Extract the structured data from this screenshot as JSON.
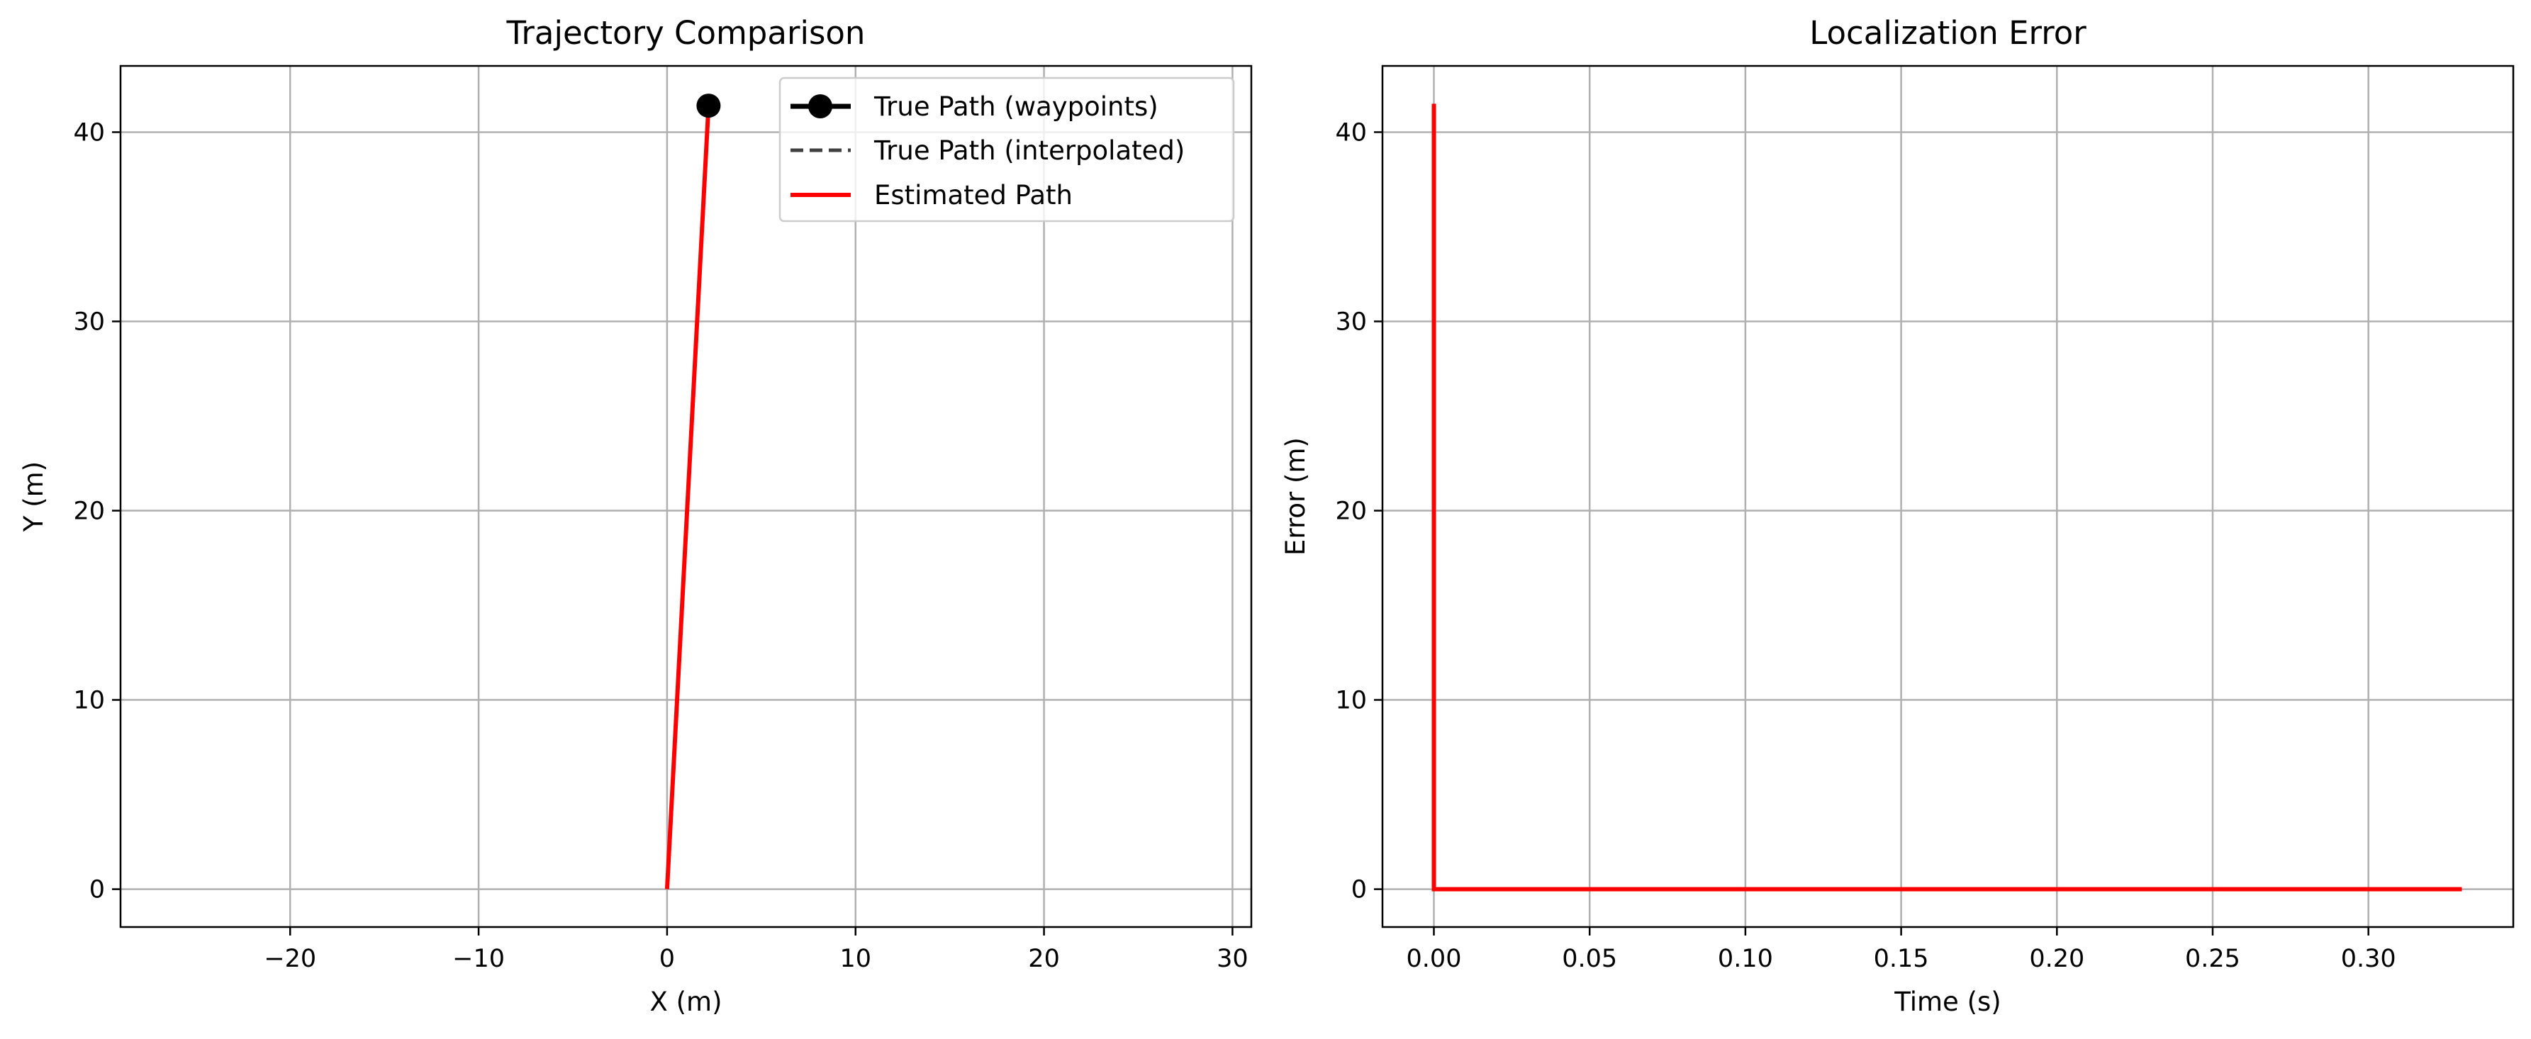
{
  "chart_data": [
    {
      "type": "line",
      "title": "Trajectory Comparison",
      "xlabel": "X (m)",
      "ylabel": "Y (m)",
      "xlim": [
        -29,
        31
      ],
      "ylim": [
        -2,
        43.5
      ],
      "xticks": [
        -20,
        -10,
        0,
        10,
        20,
        30
      ],
      "xtick_labels": [
        "−20",
        "−10",
        "0",
        "10",
        "20",
        "30"
      ],
      "yticks": [
        0,
        10,
        20,
        30,
        40
      ],
      "ytick_labels": [
        "0",
        "10",
        "20",
        "30",
        "40"
      ],
      "grid": true,
      "legend_position": "top-right",
      "colors": {
        "true_path": "#000000",
        "interpolated": "#404040",
        "estimated": "#ff0000"
      },
      "series": [
        {
          "name": "True Path (waypoints)",
          "style": "solid-marker",
          "x": [
            2.2
          ],
          "y": [
            41.4
          ]
        },
        {
          "name": "True Path (interpolated)",
          "style": "dashed",
          "x": [
            2.2
          ],
          "y": [
            41.4
          ]
        },
        {
          "name": "Estimated Path",
          "style": "solid",
          "x": [
            0,
            2.2
          ],
          "y": [
            0,
            41.4
          ]
        }
      ]
    },
    {
      "type": "line",
      "title": "Localization Error",
      "xlabel": "Time (s)",
      "ylabel": "Error (m)",
      "xlim": [
        -0.0165,
        0.3465
      ],
      "ylim": [
        -2,
        43.5
      ],
      "xticks": [
        0,
        0.05,
        0.1,
        0.15,
        0.2,
        0.25,
        0.3
      ],
      "xtick_labels": [
        "0.00",
        "0.05",
        "0.10",
        "0.15",
        "0.20",
        "0.25",
        "0.30"
      ],
      "yticks": [
        0,
        10,
        20,
        30,
        40
      ],
      "ytick_labels": [
        "0",
        "10",
        "20",
        "30",
        "40"
      ],
      "grid": true,
      "colors": {
        "error": "#ff0000"
      },
      "series": [
        {
          "style": "solid",
          "x": [
            0,
            0,
            0.33
          ],
          "y": [
            41.5,
            0,
            0
          ]
        }
      ]
    }
  ]
}
